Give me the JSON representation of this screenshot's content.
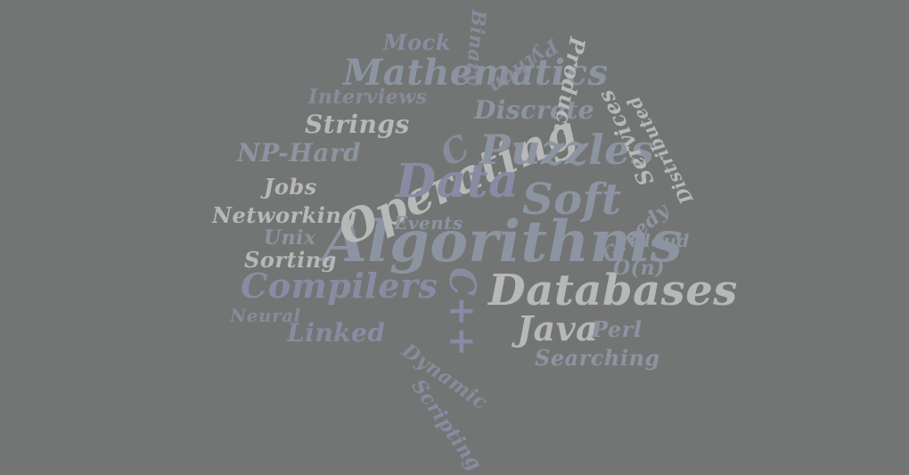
{
  "word_cloud": {
    "background": "#737574",
    "palette": {
      "light": "#b7b8b8",
      "slate": "#8d94a1",
      "dusk": "#8b8a9c",
      "lavender": "#8a8ba3"
    },
    "words": [
      {
        "text": "Algorithms",
        "tone": "slate"
      },
      {
        "text": "Databases",
        "tone": "light"
      },
      {
        "text": "Operating",
        "tone": "light"
      },
      {
        "text": "Data",
        "tone": "lavender"
      },
      {
        "text": "Puzzles",
        "tone": "slate"
      },
      {
        "text": "Mathematics",
        "tone": "slate"
      },
      {
        "text": "Soft",
        "tone": "slate"
      },
      {
        "text": "Compilers",
        "tone": "lavender"
      },
      {
        "text": "C++",
        "tone": "lavender"
      },
      {
        "text": "Java",
        "tone": "light"
      },
      {
        "text": "Strings",
        "tone": "light"
      },
      {
        "text": "Discrete",
        "tone": "slate"
      },
      {
        "text": "NP-Hard",
        "tone": "slate"
      },
      {
        "text": "C",
        "tone": "dusk"
      },
      {
        "text": "Interviews",
        "tone": "dusk"
      },
      {
        "text": "Mock",
        "tone": "lavender"
      },
      {
        "text": "Binary",
        "tone": "dusk"
      },
      {
        "text": "Python",
        "tone": "dusk"
      },
      {
        "text": "Product",
        "tone": "light"
      },
      {
        "text": "Services",
        "tone": "light"
      },
      {
        "text": "Distributed",
        "tone": "light"
      },
      {
        "text": "Jobs",
        "tone": "light"
      },
      {
        "text": "Networking",
        "tone": "light"
      },
      {
        "text": "Events",
        "tone": "slate"
      },
      {
        "text": "Unix",
        "tone": "slate"
      },
      {
        "text": "Sorting",
        "tone": "light"
      },
      {
        "text": "Greedy",
        "tone": "slate"
      },
      {
        "text": "Cloud",
        "tone": "slate"
      },
      {
        "text": "O(n)",
        "tone": "slate"
      },
      {
        "text": "Neural",
        "tone": "dusk"
      },
      {
        "text": "Linked",
        "tone": "lavender"
      },
      {
        "text": "Perl",
        "tone": "slate"
      },
      {
        "text": "Searching",
        "tone": "slate"
      },
      {
        "text": "Dynamic",
        "tone": "dusk"
      },
      {
        "text": "Scripting",
        "tone": "lavender"
      }
    ]
  }
}
